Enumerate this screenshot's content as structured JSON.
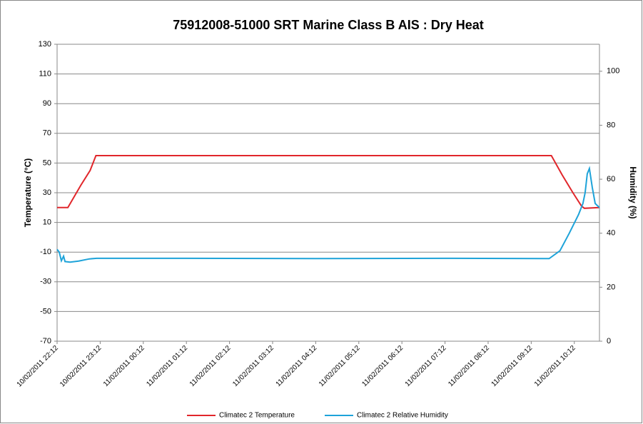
{
  "chart_data": {
    "type": "line",
    "title": "75912008-51000 SRT Marine Class B AIS : Dry Heat",
    "ylabel": "Temperature (°C)",
    "y2label": "Humidity (%)",
    "xlim": [
      "10/02/2011 22:12",
      "11/02/2011 10:47"
    ],
    "xticks": [
      "10/02/2011 22:12",
      "10/02/2011 23:12",
      "11/02/2011 00:12",
      "11/02/2011 01:12",
      "11/02/2011 02:12",
      "11/02/2011 03:12",
      "11/02/2011 04:12",
      "11/02/2011 05:12",
      "11/02/2011 06:12",
      "11/02/2011 07:12",
      "11/02/2011 08:12",
      "11/02/2011 09:12",
      "11/02/2011 10:12"
    ],
    "ylim": [
      -70,
      130
    ],
    "yticks": [
      -70,
      -50,
      -30,
      -10,
      10,
      30,
      50,
      70,
      90,
      110,
      130
    ],
    "y2lim": [
      0,
      110
    ],
    "y2ticks": [
      0,
      20,
      40,
      60,
      80,
      100
    ],
    "grid": true,
    "legend": "bottom",
    "series": [
      {
        "name": "Climatec 2 Temperature",
        "color": "#e1262b",
        "x": [
          "10/02/2011 22:12",
          "10/02/2011 22:27",
          "10/02/2011 22:45",
          "10/02/2011 22:58",
          "10/02/2011 23:06",
          "11/02/2011 03:12",
          "11/02/2011 06:12",
          "11/02/2011 09:40",
          "11/02/2011 09:55",
          "11/02/2011 10:10",
          "11/02/2011 10:22",
          "11/02/2011 10:26",
          "11/02/2011 10:47"
        ],
        "values": [
          20,
          20,
          35,
          45,
          55,
          55,
          55,
          55,
          42,
          30,
          21,
          19.5,
          20
        ]
      },
      {
        "name": "Climatec 2 Relative Humidity",
        "color": "#1ea3d9",
        "axis": "y2",
        "x": [
          "10/02/2011 22:12",
          "10/02/2011 22:15",
          "10/02/2011 22:18",
          "10/02/2011 22:21",
          "10/02/2011 22:23",
          "10/02/2011 22:30",
          "10/02/2011 22:42",
          "10/02/2011 22:57",
          "10/02/2011 23:07",
          "11/02/2011 01:12",
          "11/02/2011 04:12",
          "11/02/2011 07:12",
          "11/02/2011 09:37",
          "11/02/2011 09:52",
          "11/02/2011 10:05",
          "11/02/2011 10:18",
          "11/02/2011 10:24",
          "11/02/2011 10:27",
          "11/02/2011 10:30",
          "11/02/2011 10:33",
          "11/02/2011 10:37",
          "11/02/2011 10:41",
          "11/02/2011 10:47"
        ],
        "values": [
          34,
          33,
          29.8,
          31.5,
          29.5,
          29.3,
          29.7,
          30.5,
          30.7,
          30.7,
          30.6,
          30.7,
          30.6,
          33.5,
          40,
          47,
          51,
          55,
          62,
          64,
          57,
          51,
          49.5
        ]
      }
    ]
  }
}
